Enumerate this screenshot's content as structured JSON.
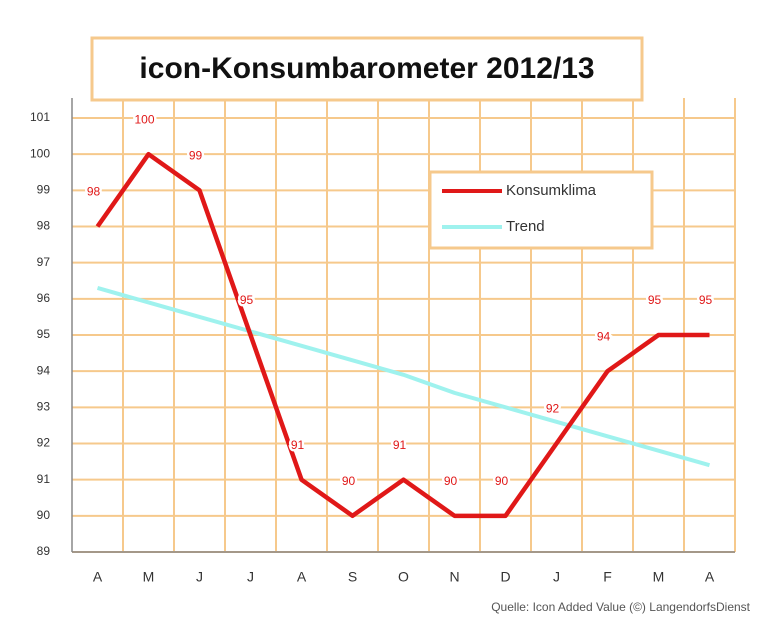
{
  "chart_data": {
    "type": "line",
    "title": "icon-Konsumbarometer 2012/13",
    "categories": [
      "A",
      "M",
      "J",
      "J",
      "A",
      "S",
      "O",
      "N",
      "D",
      "J",
      "F",
      "M",
      "A"
    ],
    "series": [
      {
        "name": "Konsumklima",
        "color": "#e01818",
        "values": [
          98,
          100,
          99,
          95,
          91,
          90,
          91,
          90,
          90,
          92,
          94,
          95,
          95
        ],
        "data_labels": true
      },
      {
        "name": "Trend",
        "color": "#9ff2ee",
        "values": [
          96.3,
          95.9,
          95.5,
          95.1,
          94.7,
          94.3,
          93.9,
          93.4,
          93.0,
          92.6,
          92.2,
          91.8,
          91.4
        ]
      }
    ],
    "ylim": [
      89,
      101
    ],
    "yticks": [
      89,
      90,
      91,
      92,
      93,
      94,
      95,
      96,
      97,
      98,
      99,
      100,
      101
    ],
    "grid": true,
    "grid_color": "#f6c98c",
    "source": "Quelle: Icon Added Value (©) LangendorfsDienst"
  }
}
